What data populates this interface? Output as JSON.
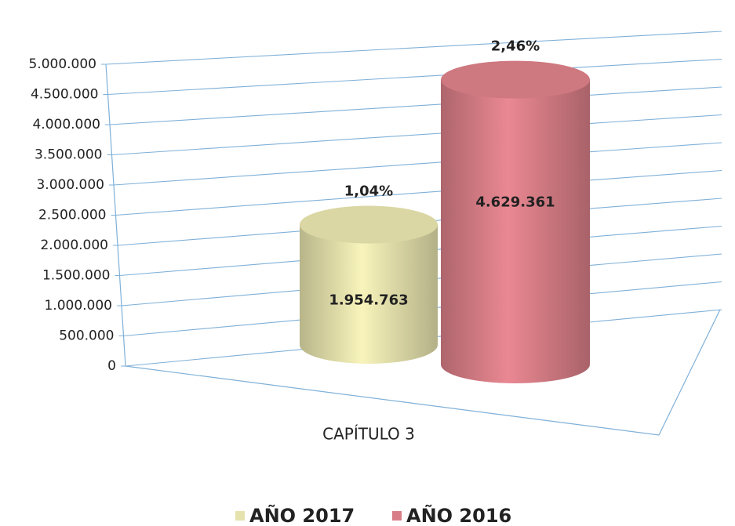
{
  "chart_data": {
    "type": "cylinder",
    "categories": [
      "CAPÍTULO 3"
    ],
    "series": [
      {
        "name": "AÑO 2017",
        "color": "#e6e2ad",
        "values": [
          1954763
        ],
        "value_labels": [
          "1.954.763"
        ],
        "annotations": [
          "1,04%"
        ]
      },
      {
        "name": "AÑO 2016",
        "color": "#d97e87",
        "values": [
          4629361
        ],
        "value_labels": [
          "4.629.361"
        ],
        "annotations": [
          "2,46%"
        ]
      }
    ],
    "ylim": [
      0,
      5000000
    ],
    "yticks": [
      0,
      {
        "value": 500000,
        "label": "500.000"
      },
      {
        "value": 1000000,
        "label": "1.000.000"
      },
      {
        "value": 1500000,
        "label": "1.500.000"
      },
      {
        "value": 2000000,
        "label": "2.000.000"
      },
      {
        "value": 2500000,
        "label": "2.500.000"
      },
      {
        "value": 3000000,
        "label": "3.000.000"
      },
      {
        "value": 3500000,
        "label": "3.500.000"
      },
      {
        "value": 4000000,
        "label": "4.000.000"
      },
      {
        "value": 4500000,
        "label": "4.500.000"
      },
      {
        "value": 5000000,
        "label": "5.000.000"
      }
    ],
    "grid": true,
    "legend": "bottom"
  }
}
